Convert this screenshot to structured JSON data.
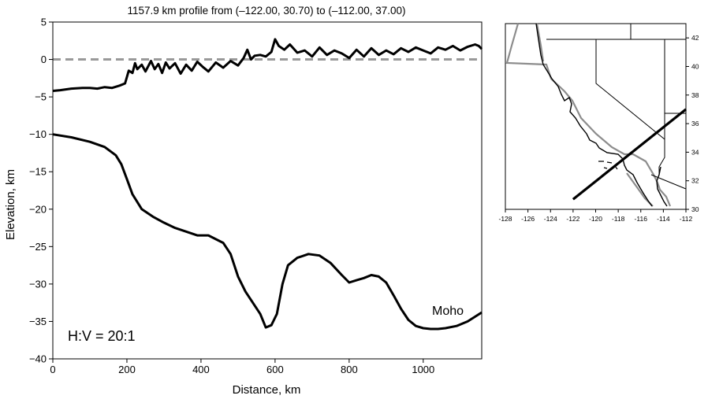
{
  "chart_data": [
    {
      "type": "line",
      "title": "1157.9 km profile from (–122.00, 30.70) to (–112.00, 37.00)",
      "xlabel": "Distance, km",
      "ylabel": "Elevation, km",
      "xlim": [
        0,
        1157.9
      ],
      "ylim": [
        -40,
        5
      ],
      "x_ticks": [
        0,
        200,
        400,
        600,
        800,
        1000
      ],
      "x_tick_labels": [
        "0",
        "200",
        "400",
        "600",
        "800",
        "1000"
      ],
      "y_ticks": [
        5,
        0,
        -5,
        -10,
        -15,
        -20,
        -25,
        -30,
        -35,
        -40
      ],
      "y_tick_labels": [
        "5",
        "0",
        "−5",
        "−10",
        "−15",
        "−20",
        "−25",
        "−30",
        "−35",
        "−40"
      ],
      "grid": false,
      "reference_line": {
        "y": 0,
        "style": "dashed",
        "color": "#999999"
      },
      "annotations": [
        "Moho",
        "H:V = 20:1"
      ],
      "series": [
        {
          "color": "#000000",
          "x": [
            0,
            20,
            50,
            80,
            100,
            120,
            140,
            160,
            180,
            195,
            205,
            215,
            222,
            228,
            240,
            250,
            265,
            275,
            285,
            295,
            305,
            315,
            330,
            345,
            360,
            375,
            390,
            405,
            420,
            440,
            460,
            480,
            500,
            515,
            525,
            535,
            545,
            560,
            575,
            590,
            600,
            610,
            625,
            640,
            660,
            680,
            700,
            720,
            740,
            760,
            780,
            800,
            820,
            840,
            860,
            880,
            900,
            920,
            940,
            960,
            980,
            1000,
            1020,
            1040,
            1060,
            1080,
            1100,
            1120,
            1140,
            1150,
            1157.9
          ],
          "values": [
            -4.2,
            -4.1,
            -3.9,
            -3.8,
            -3.8,
            -3.9,
            -3.7,
            -3.8,
            -3.5,
            -3.2,
            -1.5,
            -1.8,
            -0.5,
            -1.3,
            -0.7,
            -1.6,
            -0.2,
            -1.3,
            -0.6,
            -1.8,
            -0.4,
            -1.2,
            -0.5,
            -1.9,
            -0.7,
            -1.5,
            -0.3,
            -1.0,
            -1.6,
            -0.4,
            -1.1,
            -0.2,
            -0.8,
            0.2,
            1.3,
            0.0,
            0.5,
            0.6,
            0.4,
            1.0,
            2.7,
            1.8,
            1.3,
            2.0,
            0.9,
            1.2,
            0.4,
            1.6,
            0.6,
            1.2,
            0.8,
            0.2,
            1.3,
            0.4,
            1.5,
            0.6,
            1.2,
            0.7,
            1.5,
            1.0,
            1.6,
            1.2,
            0.8,
            1.6,
            1.3,
            1.8,
            1.2,
            1.7,
            2.0,
            1.8,
            1.4
          ]
        },
        {
          "color": "#000000",
          "x": [
            0,
            50,
            100,
            140,
            170,
            185,
            200,
            215,
            240,
            270,
            300,
            330,
            360,
            390,
            420,
            460,
            480,
            500,
            520,
            540,
            560,
            575,
            590,
            605,
            620,
            635,
            660,
            690,
            720,
            750,
            780,
            800,
            820,
            840,
            860,
            880,
            900,
            920,
            940,
            960,
            980,
            1000,
            1020,
            1040,
            1060,
            1090,
            1120,
            1157.9
          ],
          "values": [
            -10,
            -10.4,
            -11,
            -11.7,
            -12.8,
            -14,
            -16,
            -18,
            -20,
            -21,
            -21.8,
            -22.5,
            -23,
            -23.5,
            -23.5,
            -24.5,
            -26,
            -29,
            -31,
            -32.5,
            -34,
            -35.8,
            -35.5,
            -34,
            -30,
            -27.5,
            -26.5,
            -26,
            -26.2,
            -27.2,
            -28.8,
            -29.8,
            -29.5,
            -29.2,
            -28.8,
            -29,
            -29.8,
            -31.5,
            -33.3,
            -34.8,
            -35.6,
            -35.9,
            -36,
            -36,
            -35.9,
            -35.6,
            -35,
            -33.8
          ]
        }
      ]
    },
    {
      "type": "map",
      "xlim": [
        -128,
        -112
      ],
      "ylim": [
        30,
        43
      ],
      "x_ticks": [
        -128,
        -126,
        -124,
        -122,
        -120,
        -118,
        -116,
        -114,
        -112
      ],
      "x_tick_labels": [
        "-128",
        "-126",
        "-124",
        "-122",
        "-120",
        "-118",
        "-116",
        "-114",
        "-112"
      ],
      "y_ticks": [
        30,
        32,
        34,
        36,
        38,
        40,
        42
      ],
      "y_tick_labels": [
        "30",
        "32",
        "34",
        "36",
        "38",
        "40",
        "42"
      ],
      "profile_line": {
        "start": [
          -122.0,
          30.7
        ],
        "end": [
          -112.0,
          37.0
        ],
        "color": "#000000"
      },
      "state_borders_color": "#000000",
      "coastline_color": "#000000",
      "plate_boundary_color": "#8c8c8c"
    }
  ]
}
